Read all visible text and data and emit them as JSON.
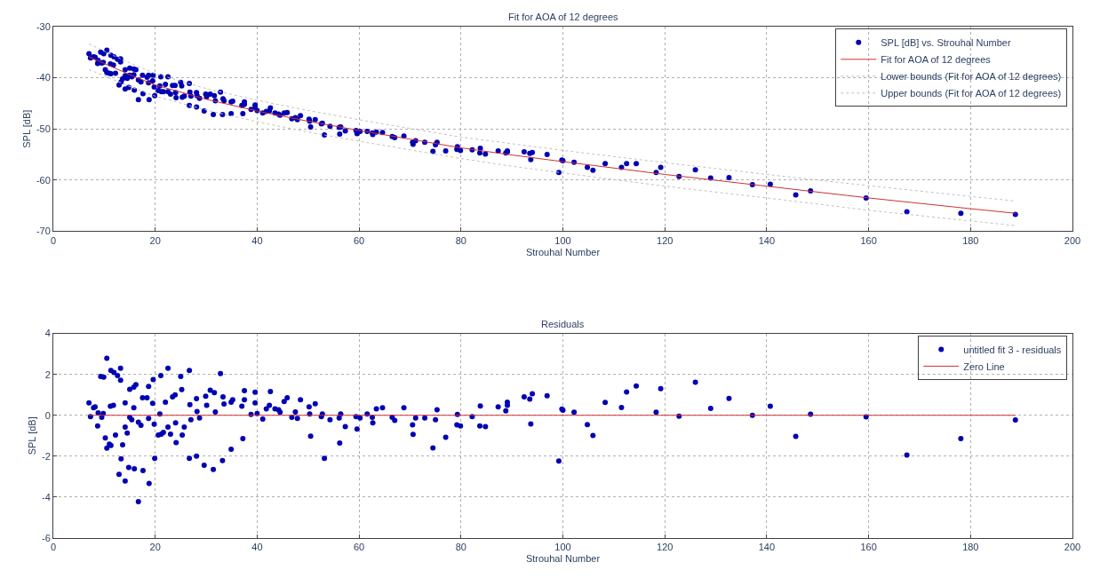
{
  "chart_data": [
    {
      "type": "scatter",
      "title": "Fit for AOA of 12 degrees",
      "xlabel": "Strouhal Number",
      "ylabel": "SPL [dB]",
      "xlim": [
        0,
        200
      ],
      "xticks": [
        0,
        20,
        40,
        60,
        80,
        100,
        120,
        140,
        160,
        180,
        200
      ],
      "ylim": [
        -70,
        -30
      ],
      "yticks": [
        -70,
        -60,
        -50,
        -40,
        -30
      ],
      "grid": true,
      "legend": "top right",
      "series": [
        {
          "name": "SPL [dB] vs. Strouhal Number",
          "marker": "circle",
          "color": "#0000b4",
          "x": [
            7.0,
            7.3,
            7.9,
            8.2,
            8.7,
            8.8,
            9.5,
            9.8,
            9.3,
            9.9,
            10.5,
            10.2,
            10.5,
            11.0,
            11.3,
            11.2,
            11.8,
            11.3,
            11.9,
            12.6,
            13.2,
            13.2,
            12.2,
            13.6,
            13.3,
            12.9,
            14.1,
            14.1,
            14.1,
            14.5,
            14.8,
            15.0,
            15.4,
            15.0,
            15.8,
            16.2,
            15.9,
            15.8,
            16.7,
            16.7,
            17.2,
            17.5,
            17.6,
            18.4,
            18.7,
            18.7,
            18.8,
            19.5,
            19.6,
            19.8,
            19.9,
            20.9,
            21.1,
            20.6,
            21.2,
            21.6,
            22.0,
            22.5,
            22.5,
            23.0,
            23.4,
            23.9,
            24.0,
            24.1,
            25.0,
            25.2,
            25.3,
            25.7,
            26.7,
            26.7,
            26.8,
            27.0,
            28.1,
            28.1,
            28.2,
            28.7,
            29.6,
            29.9,
            30.1,
            30.8,
            31.4,
            31.6,
            31.8,
            32.8,
            33.2,
            33.3,
            33.5,
            34.9,
            34.9,
            35.2,
            37.0,
            37.2,
            37.5,
            37.5,
            38.8,
            39.6,
            39.6,
            40.0,
            41.1,
            41.8,
            42.4,
            42.6,
            43.5,
            44.2,
            44.5,
            45.3,
            45.9,
            46.8,
            47.5,
            47.9,
            48.5,
            50.2,
            50.3,
            50.5,
            51.4,
            52.6,
            52.8,
            53.2,
            54.3,
            56.1,
            56.4,
            56.2,
            57.3,
            59.4,
            59.6,
            60.2,
            61.6,
            62.6,
            62.7,
            63.4,
            64.6,
            66.5,
            67.0,
            68.8,
            70.5,
            70.6,
            71.1,
            72.9,
            74.5,
            75.0,
            75.3,
            77.0,
            79.3,
            79.2,
            79.9,
            82.2,
            83.8,
            83.7,
            84.8,
            87.3,
            88.8,
            89.1,
            89.1,
            92.4,
            93.5,
            93.7,
            94.0,
            96.9,
            99.2,
            99.8,
            100.0,
            102.2,
            104.8,
            105.9,
            108.3,
            111.5,
            112.5,
            114.4,
            118.3,
            119.2,
            122.8,
            126.0,
            129.0,
            132.6,
            137.2,
            140.7,
            145.7,
            148.6,
            159.5,
            167.5,
            178.1,
            188.8
          ],
          "values": [
            -35.3,
            -36.1,
            -35.9,
            -36.0,
            -37.2,
            -36.6,
            -37.1,
            -37.0,
            -35.0,
            -35.3,
            -34.6,
            -38.4,
            -39.0,
            -39.1,
            -39.2,
            -37.3,
            -37.5,
            -35.6,
            -35.9,
            -36.4,
            -36.9,
            -36.3,
            -39.1,
            -40.2,
            -40.8,
            -41.4,
            -42.2,
            -38.4,
            -39.6,
            -40.1,
            -41.9,
            -39.5,
            -39.8,
            -38.1,
            -38.3,
            -38.4,
            -42.4,
            -39.4,
            -44.3,
            -40.4,
            -40.8,
            -39.5,
            -43.1,
            -39.9,
            -39.5,
            -41.0,
            -44.3,
            -40.6,
            -39.5,
            -41.8,
            -43.5,
            -41.6,
            -39.8,
            -42.5,
            -42.7,
            -42.7,
            -41.3,
            -39.8,
            -42.7,
            -43.2,
            -41.5,
            -41.5,
            -42.9,
            -43.9,
            -40.9,
            -41.6,
            -43.8,
            -43.6,
            -41.1,
            -45.4,
            -42.8,
            -43.6,
            -42.9,
            -45.7,
            -43.5,
            -44.0,
            -46.5,
            -43.2,
            -43.7,
            -43.2,
            -47.2,
            -43.5,
            -44.5,
            -42.8,
            -47.2,
            -44.1,
            -44.5,
            -47.0,
            -44.7,
            -44.6,
            -45.4,
            -47.0,
            -45.2,
            -44.7,
            -46.2,
            -45.8,
            -45.3,
            -46.4,
            -46.9,
            -46.6,
            -46.5,
            -45.9,
            -46.9,
            -47.1,
            -47.3,
            -46.9,
            -46.8,
            -48.0,
            -47.8,
            -48.2,
            -47.4,
            -48.1,
            -48.5,
            -49.6,
            -48.2,
            -49.0,
            -48.9,
            -51.2,
            -49.5,
            -49.7,
            -49.6,
            -51.0,
            -50.4,
            -50.3,
            -50.9,
            -50.5,
            -50.5,
            -50.8,
            -51.1,
            -50.6,
            -50.7,
            -51.5,
            -51.7,
            -51.4,
            -52.6,
            -53.0,
            -52.3,
            -52.6,
            -54.4,
            -53.1,
            -52.6,
            -54.3,
            -53.5,
            -54.0,
            -54.2,
            -54.1,
            -53.8,
            -54.7,
            -54.9,
            -54.3,
            -54.7,
            -54.3,
            -54.5,
            -54.5,
            -54.8,
            -56.0,
            -54.6,
            -55.0,
            -58.5,
            -56.1,
            -56.2,
            -56.5,
            -57.5,
            -58.1,
            -56.8,
            -57.5,
            -56.8,
            -56.8,
            -58.5,
            -57.5,
            -59.3,
            -58.0,
            -59.6,
            -59.5,
            -60.9,
            -60.8,
            -62.9,
            -62.1,
            -63.5,
            -66.2,
            -66.5,
            -66.7
          ]
        },
        {
          "name": "Fit for AOA of 12 degrees",
          "type": "line",
          "marker": "none",
          "line_style": "solid",
          "color": "#cc3333",
          "x": [
            7,
            10,
            15,
            20,
            30,
            40,
            50,
            60,
            70,
            80,
            90,
            100,
            120,
            140,
            160,
            180,
            188.8
          ],
          "values": [
            -35.9,
            -37.2,
            -39.4,
            -41.4,
            -44.2,
            -46.5,
            -48.5,
            -50.3,
            -52.0,
            -53.7,
            -55.1,
            -56.4,
            -58.9,
            -61.2,
            -63.5,
            -65.6,
            -66.5
          ]
        },
        {
          "name": "Lower bounds (Fit for AOA of 12 degrees)",
          "type": "line",
          "marker": "none",
          "line_style": "dotted",
          "color": "#c0c0c0",
          "x": [
            7,
            10,
            15,
            20,
            30,
            40,
            50,
            60,
            70,
            80,
            90,
            100,
            120,
            140,
            160,
            180,
            188.8
          ],
          "values": [
            -38.4,
            -39.6,
            -41.7,
            -43.6,
            -46.3,
            -48.6,
            -50.6,
            -52.4,
            -54.1,
            -55.8,
            -57.3,
            -58.6,
            -61.2,
            -63.5,
            -65.9,
            -68.0,
            -68.9
          ]
        },
        {
          "name": "Upper bounds (Fit for AOA of 12 degrees)",
          "type": "line",
          "marker": "none",
          "line_style": "dotted",
          "color": "#c0c0c0",
          "x": [
            7,
            10,
            15,
            20,
            30,
            40,
            50,
            60,
            70,
            80,
            90,
            100,
            120,
            140,
            160,
            180,
            188.8
          ],
          "values": [
            -33.4,
            -34.8,
            -37.1,
            -39.2,
            -42.1,
            -44.4,
            -46.4,
            -48.2,
            -49.9,
            -51.6,
            -52.9,
            -54.2,
            -56.6,
            -58.9,
            -61.1,
            -63.2,
            -64.1
          ]
        }
      ]
    },
    {
      "type": "scatter",
      "title": "Residuals",
      "xlabel": "Strouhal Number",
      "ylabel": "SPL [dB]",
      "xlim": [
        0,
        200
      ],
      "xticks": [
        0,
        20,
        40,
        60,
        80,
        100,
        120,
        140,
        160,
        180,
        200
      ],
      "ylim": [
        -6,
        4
      ],
      "yticks": [
        -6,
        -4,
        -2,
        0,
        2,
        4
      ],
      "grid": true,
      "legend": "top right",
      "series": [
        {
          "name": "untitled fit 3 - residuals",
          "marker": "circle",
          "color": "#0000b4",
          "x": [
            7.0,
            7.3,
            7.9,
            8.2,
            8.7,
            8.8,
            9.5,
            9.8,
            9.3,
            9.9,
            10.5,
            10.2,
            10.5,
            11.0,
            11.3,
            11.2,
            11.8,
            11.3,
            11.9,
            12.6,
            13.2,
            13.2,
            12.2,
            13.6,
            13.3,
            12.9,
            14.1,
            14.1,
            14.1,
            14.5,
            14.8,
            15.0,
            15.4,
            15.0,
            15.8,
            16.2,
            15.9,
            15.8,
            16.7,
            16.7,
            17.2,
            17.5,
            17.6,
            18.4,
            18.7,
            18.7,
            18.8,
            19.5,
            19.6,
            19.8,
            19.9,
            20.9,
            21.1,
            20.6,
            21.2,
            21.6,
            22.0,
            22.5,
            22.5,
            23.0,
            23.4,
            23.9,
            24.0,
            24.1,
            25.0,
            25.2,
            25.3,
            25.7,
            26.7,
            26.7,
            26.8,
            27.0,
            28.1,
            28.1,
            28.2,
            28.7,
            29.6,
            29.9,
            30.1,
            30.8,
            31.4,
            31.6,
            31.8,
            32.8,
            33.2,
            33.3,
            33.5,
            34.9,
            34.9,
            35.2,
            37.0,
            37.2,
            37.5,
            37.5,
            38.8,
            39.6,
            39.6,
            40.0,
            41.1,
            41.8,
            42.4,
            42.6,
            43.5,
            44.2,
            44.5,
            45.3,
            45.9,
            46.8,
            47.5,
            47.9,
            48.5,
            50.2,
            50.3,
            50.5,
            51.4,
            52.6,
            52.8,
            53.2,
            54.3,
            56.1,
            56.4,
            56.2,
            57.3,
            59.4,
            59.6,
            60.2,
            61.6,
            62.6,
            62.7,
            63.4,
            64.6,
            66.5,
            67.0,
            68.8,
            70.5,
            70.6,
            71.1,
            72.9,
            74.5,
            75.0,
            75.3,
            77.0,
            79.3,
            79.2,
            79.9,
            82.2,
            83.8,
            83.7,
            84.8,
            87.3,
            88.8,
            89.1,
            89.1,
            92.4,
            93.5,
            93.7,
            94.0,
            96.9,
            99.2,
            99.8,
            100.0,
            102.2,
            104.8,
            105.9,
            108.3,
            111.5,
            112.5,
            114.4,
            118.3,
            119.2,
            122.8,
            126.0,
            129.0,
            132.6,
            137.2,
            140.7,
            145.7,
            148.6,
            159.5,
            167.5,
            178.1,
            188.8
          ],
          "values": [
            0.61,
            -0.07,
            0.37,
            0.41,
            -0.52,
            0.12,
            -0.1,
            0.09,
            1.9,
            1.87,
            2.79,
            -1.11,
            -1.61,
            -1.41,
            -1.47,
            0.44,
            0.49,
            2.19,
            2.09,
            1.94,
            1.72,
            2.3,
            -0.96,
            -1.44,
            -2.13,
            -2.89,
            -3.21,
            0.61,
            -0.58,
            -0.87,
            -2.55,
            -0.1,
            -0.22,
            1.27,
            1.38,
            1.5,
            -2.62,
            0.37,
            -4.22,
            -0.34,
            -0.49,
            0.86,
            -2.7,
            0.86,
            1.41,
            -0.15,
            -3.33,
            0.59,
            1.75,
            -0.43,
            -2.1,
            0.07,
            1.94,
            -0.96,
            -0.92,
            -0.84,
            0.64,
            2.3,
            -0.58,
            -0.92,
            0.9,
            1.0,
            -0.37,
            -1.33,
            1.9,
            1.26,
            -0.96,
            -0.58,
            2.19,
            -2.1,
            0.52,
            -0.22,
            0.81,
            -2.0,
            0.19,
            -0.13,
            -2.44,
            0.93,
            0.49,
            1.23,
            -2.65,
            1.11,
            0.16,
            2.04,
            -2.21,
            0.9,
            0.55,
            -1.66,
            0.64,
            0.76,
            0.44,
            -1.14,
            0.76,
            1.2,
            0.04,
            0.61,
            1.13,
            0.09,
            -0.18,
            0.31,
            0.49,
            1.16,
            0.31,
            0.27,
            0.15,
            0.67,
            0.86,
            -0.1,
            0.16,
            -0.15,
            0.76,
            0.41,
            0.07,
            -1.02,
            0.56,
            -0.07,
            0.07,
            -2.1,
            -0.22,
            -0.13,
            0.07,
            -1.36,
            -0.55,
            -0.07,
            -0.67,
            -0.13,
            0.07,
            -0.1,
            -0.37,
            0.31,
            0.37,
            -0.1,
            -0.25,
            0.37,
            -0.47,
            -0.93,
            -0.13,
            -0.13,
            -1.59,
            -0.22,
            0.27,
            -1.07,
            0.04,
            -0.47,
            -0.52,
            -0.06,
            0.46,
            -0.52,
            -0.55,
            0.41,
            0.22,
            0.64,
            0.49,
            0.9,
            0.79,
            -0.42,
            1.05,
            0.95,
            -2.23,
            0.3,
            0.25,
            0.15,
            -0.46,
            -0.99,
            0.63,
            0.38,
            1.14,
            1.43,
            0.15,
            1.3,
            -0.04,
            1.62,
            0.34,
            0.82,
            0.0,
            0.44,
            -1.03,
            0.06,
            -0.08,
            -1.94,
            -1.14,
            -0.23
          ]
        },
        {
          "name": "Zero Line",
          "type": "line",
          "marker": "none",
          "line_style": "solid",
          "color": "#cc3333",
          "x": [
            7.0,
            188.8
          ],
          "values": [
            0,
            0
          ]
        }
      ]
    }
  ]
}
